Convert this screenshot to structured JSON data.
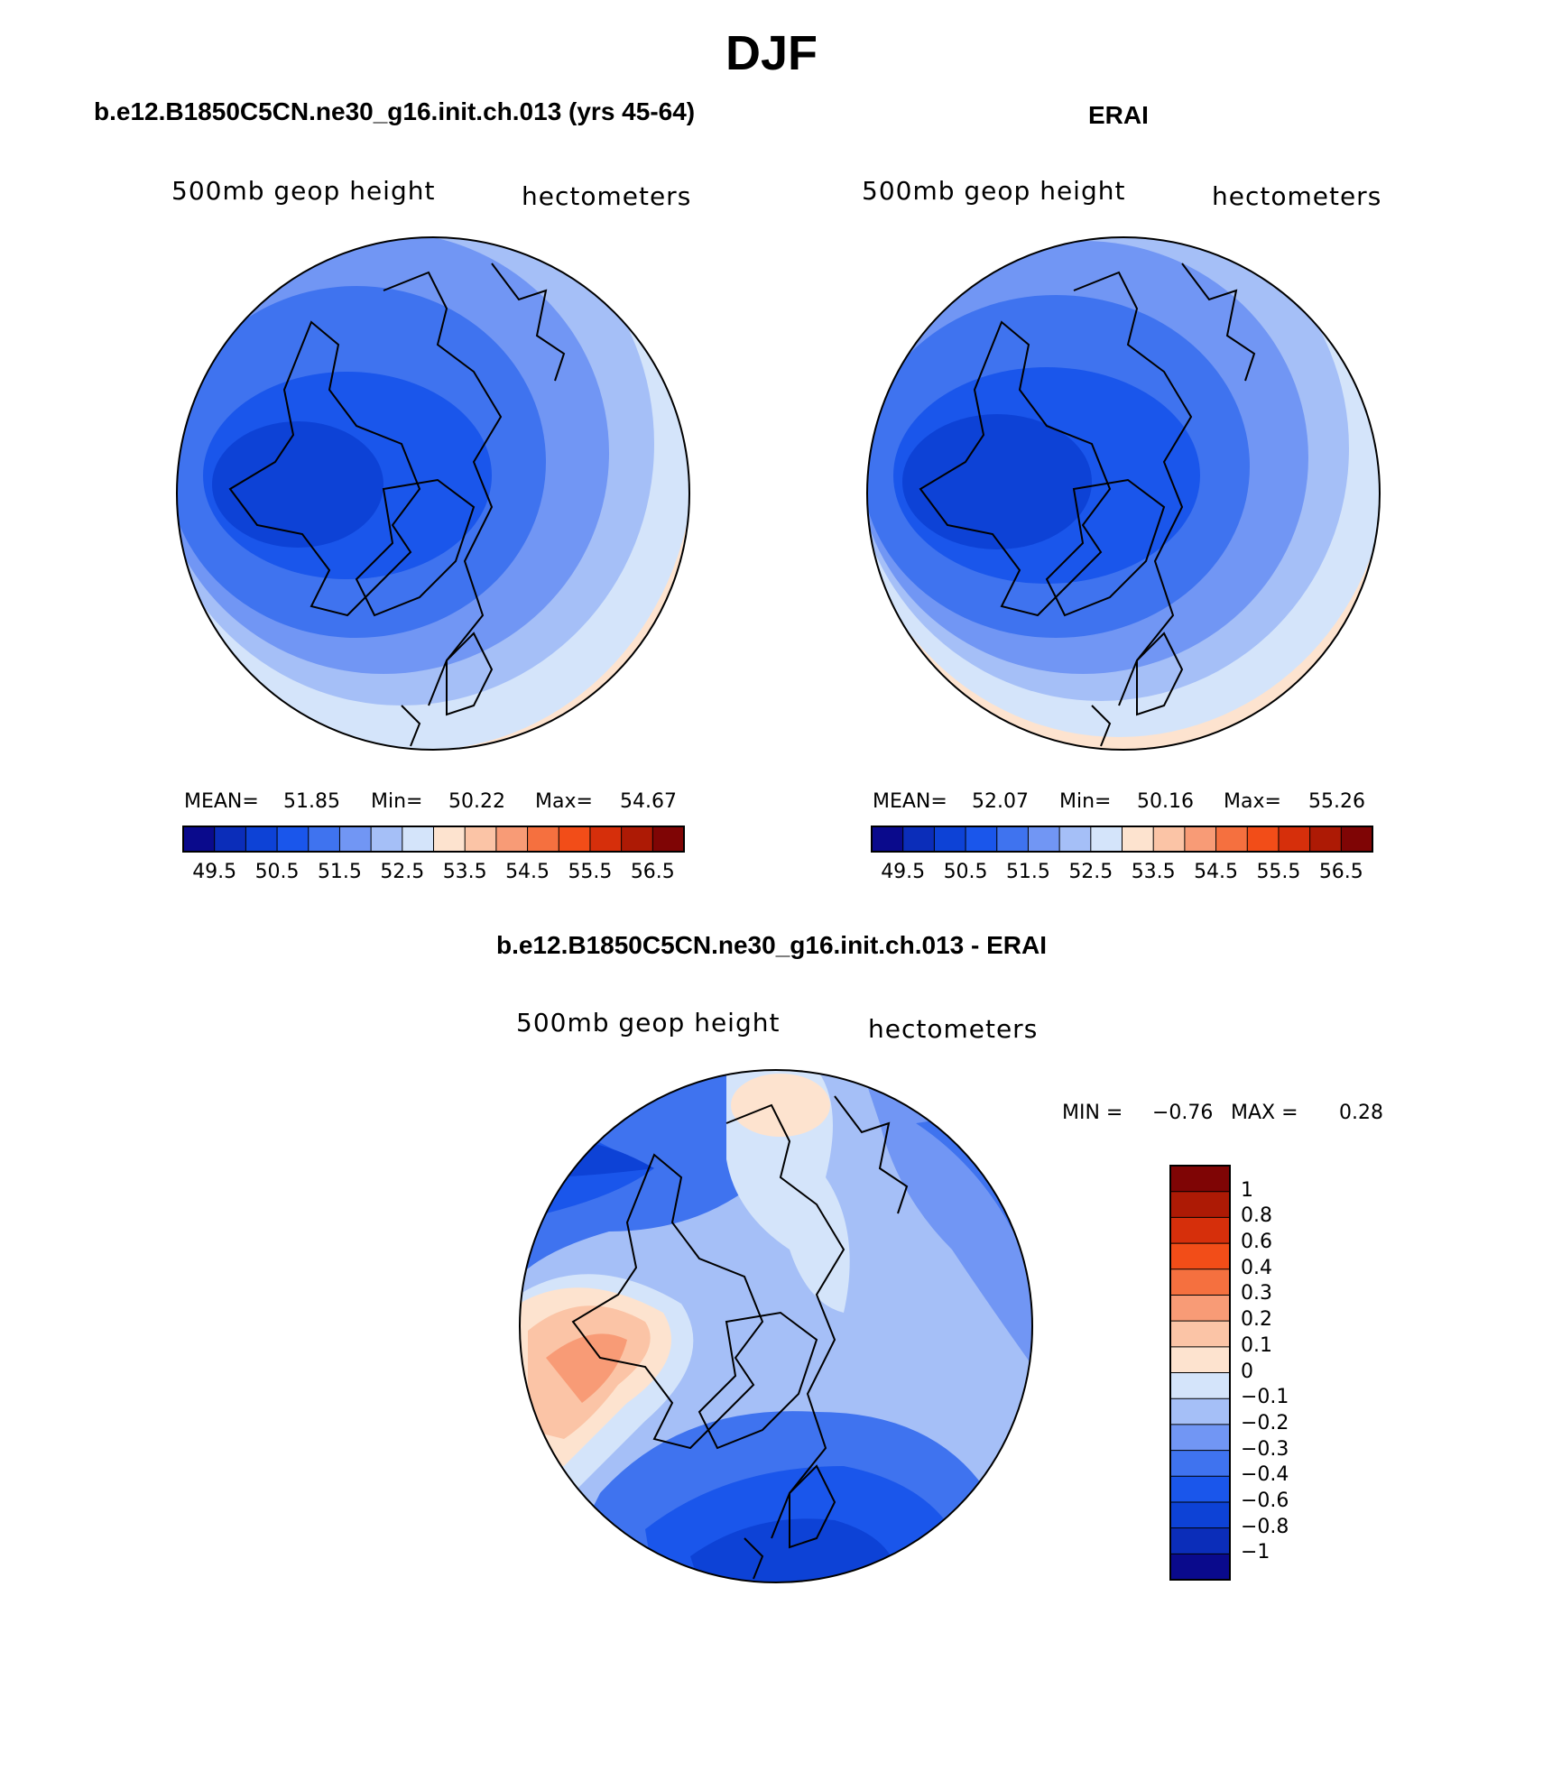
{
  "figure_title": "DJF",
  "chart_data": [
    {
      "type": "heatmap",
      "panel": "model",
      "title": "b.e12.B1850C5CN.ne30_g16.init.ch.013 (yrs 45-64)",
      "left_label": "500mb geop height",
      "right_label": "hectometers",
      "stats": {
        "mean_label": "MEAN=",
        "mean": "51.85",
        "min_label": "Min=",
        "min": "50.22",
        "max_label": "Max=",
        "max": "54.67"
      },
      "colorbar": {
        "orientation": "horizontal",
        "tick_labels": [
          "49.5",
          "50.5",
          "51.5",
          "52.5",
          "53.5",
          "54.5",
          "55.5",
          "56.5"
        ],
        "levels": [
          49.5,
          50,
          50.5,
          51,
          51.5,
          52,
          52.5,
          53,
          53.5,
          54,
          54.5,
          55,
          55.5,
          56,
          56.5
        ],
        "colors": [
          "#0a0a8c",
          "#0b2db9",
          "#0d42d6",
          "#1a56eb",
          "#3f73ef",
          "#7196f4",
          "#a5bff7",
          "#d4e4fa",
          "#fde3cf",
          "#fbc4a6",
          "#f89b76",
          "#f5703f",
          "#f24d18",
          "#d62f0b",
          "#ad1a05",
          "#7f0505"
        ]
      }
    },
    {
      "type": "heatmap",
      "panel": "obs",
      "title": "ERAI",
      "left_label": "500mb geop height",
      "right_label": "hectometers",
      "stats": {
        "mean_label": "MEAN=",
        "mean": "52.07",
        "min_label": "Min=",
        "min": "50.16",
        "max_label": "Max=",
        "max": "55.26"
      },
      "colorbar": {
        "orientation": "horizontal",
        "tick_labels": [
          "49.5",
          "50.5",
          "51.5",
          "52.5",
          "53.5",
          "54.5",
          "55.5",
          "56.5"
        ],
        "levels": [
          49.5,
          50,
          50.5,
          51,
          51.5,
          52,
          52.5,
          53,
          53.5,
          54,
          54.5,
          55,
          55.5,
          56,
          56.5
        ],
        "colors": [
          "#0a0a8c",
          "#0b2db9",
          "#0d42d6",
          "#1a56eb",
          "#3f73ef",
          "#7196f4",
          "#a5bff7",
          "#d4e4fa",
          "#fde3cf",
          "#fbc4a6",
          "#f89b76",
          "#f5703f",
          "#f24d18",
          "#d62f0b",
          "#ad1a05",
          "#7f0505"
        ]
      }
    },
    {
      "type": "heatmap",
      "panel": "difference",
      "title": "b.e12.B1850C5CN.ne30_g16.init.ch.013 - ERAI",
      "left_label": "500mb geop height",
      "right_label": "hectometers",
      "stats": {
        "min_label": "MIN =",
        "min": "−0.76",
        "max_label": "MAX =",
        "max": "0.28"
      },
      "colorbar": {
        "orientation": "vertical",
        "levels": [
          -1,
          -0.8,
          -0.6,
          -0.4,
          -0.3,
          -0.2,
          -0.1,
          0,
          0.1,
          0.2,
          0.3,
          0.4,
          0.6,
          0.8,
          1
        ],
        "tick_labels": [
          "1",
          "0.8",
          "0.6",
          "0.4",
          "0.3",
          "0.2",
          "0.1",
          "0",
          "−0.1",
          "−0.2",
          "−0.3",
          "−0.4",
          "−0.6",
          "−0.8",
          "−1"
        ],
        "colors": [
          "#0a0a8c",
          "#0b2db9",
          "#0d42d6",
          "#1a56eb",
          "#3f73ef",
          "#7196f4",
          "#a5bff7",
          "#d4e4fa",
          "#fde3cf",
          "#fbc4a6",
          "#f89b76",
          "#f5703f",
          "#f24d18",
          "#d62f0b",
          "#ad1a05",
          "#7f0505"
        ]
      }
    }
  ]
}
